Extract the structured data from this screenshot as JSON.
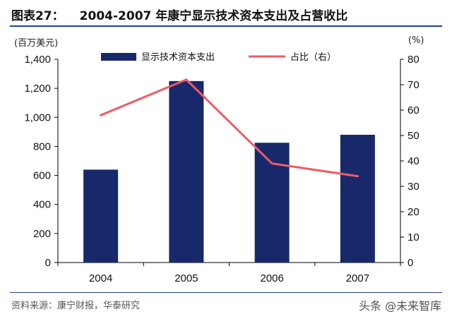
{
  "header": {
    "figure_label": "图表27：",
    "title_text": "2004-2007 年康宁显示技术资本支出及占营收比"
  },
  "units": {
    "left": "(百万美元)",
    "right": "(%)"
  },
  "source": "资料来源：康宁财报，华泰研究",
  "watermark": "头条 @未来智库",
  "colors": {
    "bar": "#17296b",
    "line": "#ef5b63",
    "axis": "#000000",
    "rule": "#1f3f8f"
  },
  "chart_data": {
    "type": "bar+line",
    "categories": [
      "2004",
      "2005",
      "2006",
      "2007"
    ],
    "series": [
      {
        "name": "显示技术资本支出",
        "type": "bar",
        "axis": "left",
        "values": [
          640,
          1250,
          825,
          880
        ]
      },
      {
        "name": "占比（右）",
        "type": "line",
        "axis": "right",
        "values": [
          58,
          72,
          39,
          34
        ]
      }
    ],
    "y_left": {
      "range": [
        0,
        1400
      ],
      "ticks": [
        "0",
        "200",
        "400",
        "600",
        "800",
        "1,000",
        "1,200",
        "1,400"
      ]
    },
    "y_right": {
      "range": [
        0,
        80
      ],
      "ticks": [
        "0",
        "10",
        "20",
        "30",
        "40",
        "50",
        "60",
        "70",
        "80"
      ]
    },
    "grid": false,
    "legend_position": "top"
  }
}
